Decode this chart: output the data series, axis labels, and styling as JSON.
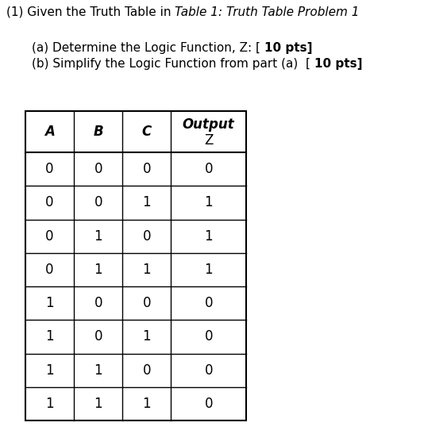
{
  "title_normal": "(1) Given the Truth Table in ",
  "title_italic": "Table 1: Truth Table Problem 1",
  "sub_a_normal": "(a) Determine the Logic Function, Z: [ ",
  "sub_a_bold": "10 pts]",
  "sub_b_normal": "(b) Simplify the Logic Function from part (a)  [ ",
  "sub_b_bold": "10 pts]",
  "rows": [
    [
      0,
      0,
      0,
      0
    ],
    [
      0,
      0,
      1,
      1
    ],
    [
      0,
      1,
      0,
      1
    ],
    [
      0,
      1,
      1,
      1
    ],
    [
      1,
      0,
      0,
      0
    ],
    [
      1,
      0,
      1,
      0
    ],
    [
      1,
      1,
      0,
      0
    ],
    [
      1,
      1,
      1,
      0
    ]
  ],
  "bg_color": "#ffffff",
  "text_color": "#000000",
  "fig_width": 5.34,
  "fig_height": 5.42,
  "dpi": 100
}
